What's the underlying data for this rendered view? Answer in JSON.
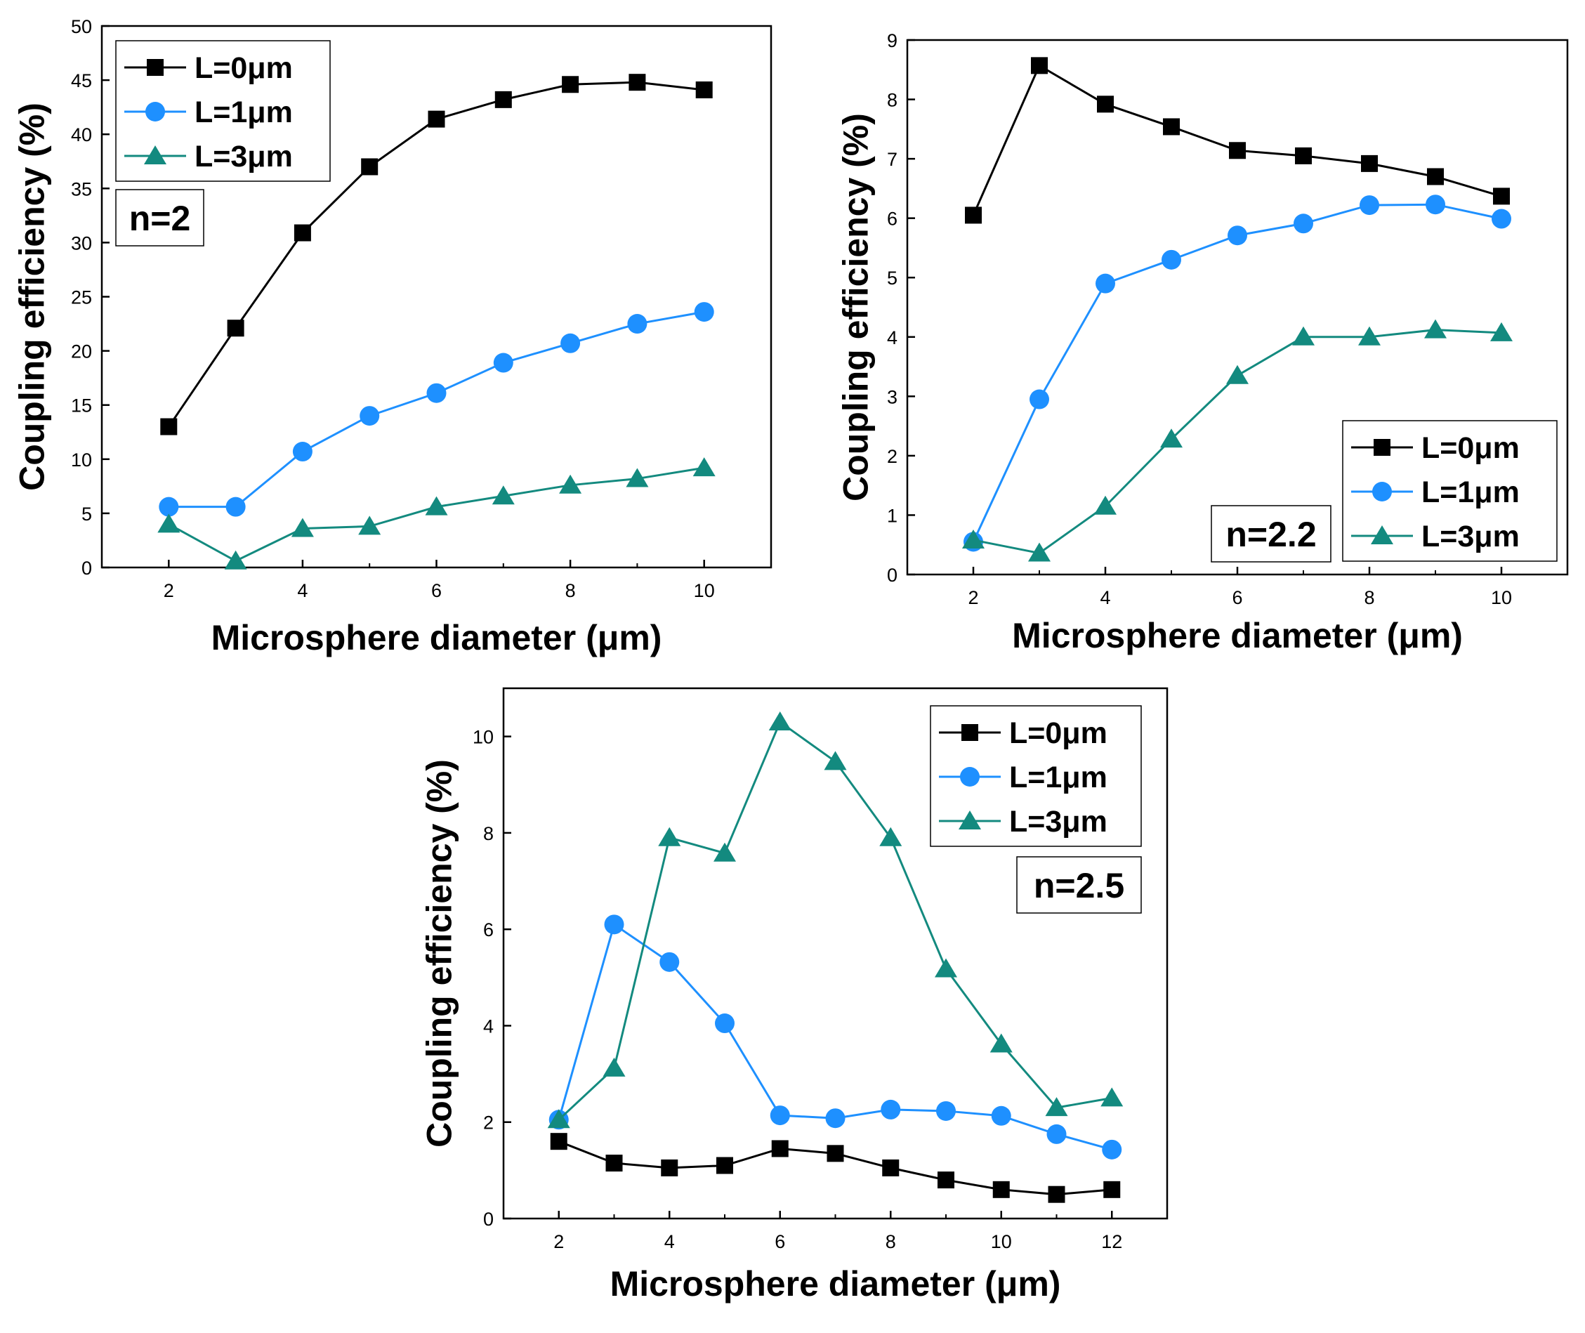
{
  "chart_data": [
    {
      "type": "line",
      "id": "n2",
      "annotation": "n=2",
      "xlabel": "Microsphere diameter (μm)",
      "ylabel": "Coupling efficiency (%)",
      "xlim": [
        1,
        11
      ],
      "ylim": [
        0,
        50
      ],
      "xticks": [
        2,
        4,
        6,
        8,
        10
      ],
      "yticks": [
        0,
        5,
        10,
        15,
        20,
        25,
        30,
        35,
        40,
        45,
        50
      ],
      "legend_position": "top-left",
      "annotation_position": "upper-left",
      "x": [
        2,
        3,
        4,
        5,
        6,
        7,
        8,
        9,
        10
      ],
      "series": [
        {
          "name": "L=0μm",
          "color": "#000000",
          "marker": "square",
          "values": [
            13.0,
            22.1,
            30.9,
            37.0,
            41.4,
            43.2,
            44.6,
            44.8,
            44.1
          ]
        },
        {
          "name": "L=1μm",
          "color": "#1e90ff",
          "marker": "circle",
          "values": [
            5.6,
            5.6,
            10.7,
            14.0,
            16.1,
            18.9,
            20.7,
            22.5,
            23.6
          ]
        },
        {
          "name": "L=3μm",
          "color": "#138a7f",
          "marker": "triangle",
          "values": [
            4.0,
            0.6,
            3.6,
            3.8,
            5.6,
            6.6,
            7.6,
            8.2,
            9.2
          ]
        }
      ]
    },
    {
      "type": "line",
      "id": "n2.2",
      "annotation": "n=2.2",
      "xlabel": "Microsphere diameter (μm)",
      "ylabel": "Coupling efficiency (%)",
      "xlim": [
        1,
        11
      ],
      "ylim": [
        0,
        9
      ],
      "xticks": [
        2,
        4,
        6,
        8,
        10
      ],
      "yticks": [
        0,
        1,
        2,
        3,
        4,
        5,
        6,
        7,
        8,
        9
      ],
      "legend_position": "bottom-right",
      "annotation_position": "bottom-center-right",
      "x": [
        2,
        3,
        4,
        5,
        6,
        7,
        8,
        9,
        10
      ],
      "series": [
        {
          "name": "L=0μm",
          "color": "#000000",
          "marker": "square",
          "values": [
            6.05,
            8.57,
            7.92,
            7.54,
            7.14,
            7.05,
            6.92,
            6.7,
            6.37
          ]
        },
        {
          "name": "L=1μm",
          "color": "#1e90ff",
          "marker": "circle",
          "values": [
            0.55,
            2.95,
            4.9,
            5.3,
            5.71,
            5.91,
            6.22,
            6.23,
            5.99
          ]
        },
        {
          "name": "L=3μm",
          "color": "#138a7f",
          "marker": "triangle",
          "values": [
            0.58,
            0.36,
            1.15,
            2.28,
            3.35,
            4.0,
            4.0,
            4.12,
            4.07
          ]
        }
      ]
    },
    {
      "type": "line",
      "id": "n2.5",
      "annotation": "n=2.5",
      "xlabel": "Microsphere diameter (μm)",
      "ylabel": "Coupling efficiency (%)",
      "xlim": [
        1,
        13
      ],
      "ylim": [
        0,
        11
      ],
      "xticks": [
        2,
        4,
        6,
        8,
        10,
        12
      ],
      "yticks": [
        0,
        2,
        4,
        6,
        8,
        10
      ],
      "legend_position": "top-right",
      "annotation_position": "upper-right",
      "x": [
        2,
        3,
        4,
        5,
        6,
        7,
        8,
        9,
        10,
        11,
        12
      ],
      "series": [
        {
          "name": "L=0μm",
          "color": "#000000",
          "marker": "square",
          "values": [
            1.6,
            1.15,
            1.05,
            1.1,
            1.45,
            1.35,
            1.05,
            0.8,
            0.6,
            0.5,
            0.6
          ]
        },
        {
          "name": "L=1μm",
          "color": "#1e90ff",
          "marker": "circle",
          "values": [
            2.05,
            6.1,
            5.32,
            4.05,
            2.14,
            2.08,
            2.26,
            2.23,
            2.13,
            1.75,
            1.43
          ]
        },
        {
          "name": "L=3μm",
          "color": "#138a7f",
          "marker": "triangle",
          "values": [
            2.05,
            3.12,
            7.9,
            7.58,
            10.3,
            9.48,
            7.9,
            5.18,
            3.62,
            2.3,
            2.5
          ]
        }
      ]
    }
  ]
}
